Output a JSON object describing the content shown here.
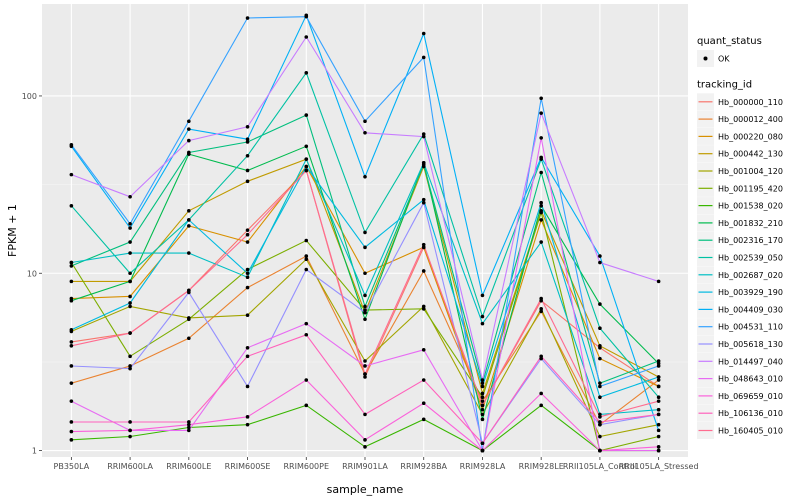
{
  "chart_data": {
    "type": "line",
    "xlabel": "sample_name",
    "ylabel": "FPKM + 1",
    "y_scale": "log10",
    "ylim": [
      0.92,
      330
    ],
    "y_ticks": [
      {
        "value": 1,
        "label": "1"
      },
      {
        "value": 10,
        "label": "10"
      },
      {
        "value": 100,
        "label": "100"
      }
    ],
    "categories": [
      "PB350LA",
      "RRIM600LA",
      "RRIM600LE",
      "RRIM600SE",
      "RRIM600PE",
      "RRIM901LA",
      "RRIM928BA",
      "RRIM928LA",
      "RRIM928LE",
      "RRII105LA_Control",
      "RRII105LA_Stressed"
    ],
    "grid": true,
    "legend_position": "right",
    "legends": [
      {
        "title": "quant_status",
        "entries": [
          {
            "label": "OK",
            "symbol": "point",
            "color": "#000000"
          }
        ]
      },
      {
        "title": "tracking_id",
        "entries": [
          {
            "label": "Hb_000000_110",
            "color": "#F8766D"
          },
          {
            "label": "Hb_000012_400",
            "color": "#EA8331"
          },
          {
            "label": "Hb_000220_080",
            "color": "#D89000"
          },
          {
            "label": "Hb_000442_130",
            "color": "#C09B00"
          },
          {
            "label": "Hb_001004_120",
            "color": "#A3A500"
          },
          {
            "label": "Hb_001195_420",
            "color": "#7CAE00"
          },
          {
            "label": "Hb_001538_020",
            "color": "#39B600"
          },
          {
            "label": "Hb_001832_210",
            "color": "#00BB4E"
          },
          {
            "label": "Hb_002316_170",
            "color": "#00BF7D"
          },
          {
            "label": "Hb_002539_050",
            "color": "#00C1A3"
          },
          {
            "label": "Hb_002687_020",
            "color": "#00BFC4"
          },
          {
            "label": "Hb_003929_190",
            "color": "#00BAE0"
          },
          {
            "label": "Hb_004409_030",
            "color": "#00B0F6"
          },
          {
            "label": "Hb_004531_110",
            "color": "#35A2FF"
          },
          {
            "label": "Hb_005618_130",
            "color": "#9590FF"
          },
          {
            "label": "Hb_014497_040",
            "color": "#C77CFF"
          },
          {
            "label": "Hb_048643_010",
            "color": "#E76BF3"
          },
          {
            "label": "Hb_069659_010",
            "color": "#FA62DB"
          },
          {
            "label": "Hb_106136_010",
            "color": "#FF62BC"
          },
          {
            "label": "Hb_160405_010",
            "color": "#FF6C90"
          }
        ]
      }
    ],
    "series": [
      {
        "name": "Hb_000000_110",
        "color": "#F8766D",
        "values": [
          4.1,
          4.6,
          8.0,
          17.5,
          38.0,
          2.6,
          14.0,
          1.8,
          7.0,
          3.8,
          2.3
        ]
      },
      {
        "name": "Hb_000012_400",
        "color": "#EA8331",
        "values": [
          2.4,
          3.0,
          4.3,
          8.3,
          12.5,
          2.7,
          10.3,
          1.9,
          6.1,
          1.4,
          2.5
        ]
      },
      {
        "name": "Hb_000220_080",
        "color": "#D89000",
        "values": [
          7.2,
          7.4,
          18.5,
          15.0,
          40.0,
          10.0,
          14.0,
          1.7,
          20.0,
          3.3,
          2.3
        ]
      },
      {
        "name": "Hb_000442_130",
        "color": "#C09B00",
        "values": [
          9.0,
          9.0,
          22.5,
          33.0,
          44.0,
          6.0,
          40.0,
          2.1,
          22.5,
          3.9,
          2.6
        ]
      },
      {
        "name": "Hb_001004_120",
        "color": "#A3A500",
        "values": [
          4.7,
          6.5,
          5.6,
          5.8,
          12.0,
          3.2,
          6.5,
          1.6,
          6.3,
          1.2,
          1.4
        ]
      },
      {
        "name": "Hb_001195_420",
        "color": "#7CAE00",
        "values": [
          11.5,
          3.4,
          5.5,
          10.5,
          15.3,
          6.2,
          6.3,
          2.0,
          22.0,
          1.0,
          1.2
        ]
      },
      {
        "name": "Hb_001538_020",
        "color": "#39B600",
        "values": [
          1.15,
          1.2,
          1.35,
          1.4,
          1.8,
          1.05,
          1.5,
          1.0,
          1.8,
          1.0,
          1.0
        ]
      },
      {
        "name": "Hb_001832_210",
        "color": "#00BB4E",
        "values": [
          7.0,
          9.0,
          47.0,
          38.0,
          52.0,
          5.5,
          42.0,
          1.5,
          24.0,
          6.7,
          3.1
        ]
      },
      {
        "name": "Hb_002316_170",
        "color": "#00BF7D",
        "values": [
          11.0,
          15.0,
          48.0,
          55.0,
          78.0,
          6.5,
          41.0,
          2.4,
          37.0,
          2.4,
          3.2
        ]
      },
      {
        "name": "Hb_002539_050",
        "color": "#00C1A3",
        "values": [
          24.0,
          10.0,
          20.0,
          46.0,
          135.0,
          17.0,
          61.0,
          5.7,
          44.0,
          4.9,
          2.0
        ]
      },
      {
        "name": "Hb_002687_020",
        "color": "#00BFC4",
        "values": [
          11.5,
          13.0,
          13.0,
          9.5,
          44.0,
          7.5,
          42.0,
          5.2,
          15.0,
          1.6,
          1.7
        ]
      },
      {
        "name": "Hb_003929_190",
        "color": "#00BAE0",
        "values": [
          4.8,
          6.8,
          20.0,
          10.0,
          40.0,
          14.0,
          26.0,
          2.3,
          25.0,
          2.0,
          2.6
        ]
      },
      {
        "name": "Hb_004409_030",
        "color": "#00B0F6",
        "values": [
          52.0,
          18.0,
          65.0,
          57.0,
          285.0,
          35.0,
          225.0,
          7.5,
          45.0,
          12.5,
          1.3
        ]
      },
      {
        "name": "Hb_004531_110",
        "color": "#35A2FF",
        "values": [
          53.0,
          19.0,
          72.0,
          275.0,
          280.0,
          72.0,
          165.0,
          1.0,
          97.0,
          2.3,
          3.0
        ]
      },
      {
        "name": "Hb_005618_130",
        "color": "#9590FF",
        "values": [
          3.0,
          2.9,
          7.8,
          2.3,
          10.5,
          6.0,
          25.0,
          1.1,
          3.3,
          1.4,
          1.6
        ]
      },
      {
        "name": "Hb_014497_040",
        "color": "#C77CFF",
        "values": [
          36.0,
          27.0,
          56.0,
          67.0,
          215.0,
          62.0,
          59.0,
          2.5,
          80.0,
          11.5,
          9.0
        ]
      },
      {
        "name": "Hb_048643_010",
        "color": "#E76BF3",
        "values": [
          1.9,
          1.3,
          1.3,
          3.8,
          5.2,
          3.0,
          3.7,
          1.0,
          58.0,
          1.0,
          1.0
        ]
      },
      {
        "name": "Hb_069659_010",
        "color": "#FA62DB",
        "values": [
          1.28,
          1.3,
          1.4,
          1.55,
          2.5,
          1.15,
          1.85,
          1.0,
          2.1,
          1.0,
          1.05
        ]
      },
      {
        "name": "Hb_106136_010",
        "color": "#FF62BC",
        "values": [
          1.45,
          1.45,
          1.45,
          3.4,
          4.5,
          1.6,
          2.5,
          1.1,
          3.4,
          1.45,
          1.6
        ]
      },
      {
        "name": "Hb_160405_010",
        "color": "#FF6C90",
        "values": [
          3.9,
          4.6,
          8.0,
          16.5,
          38.0,
          2.7,
          14.5,
          1.8,
          7.2,
          1.55,
          1.9
        ]
      }
    ]
  }
}
